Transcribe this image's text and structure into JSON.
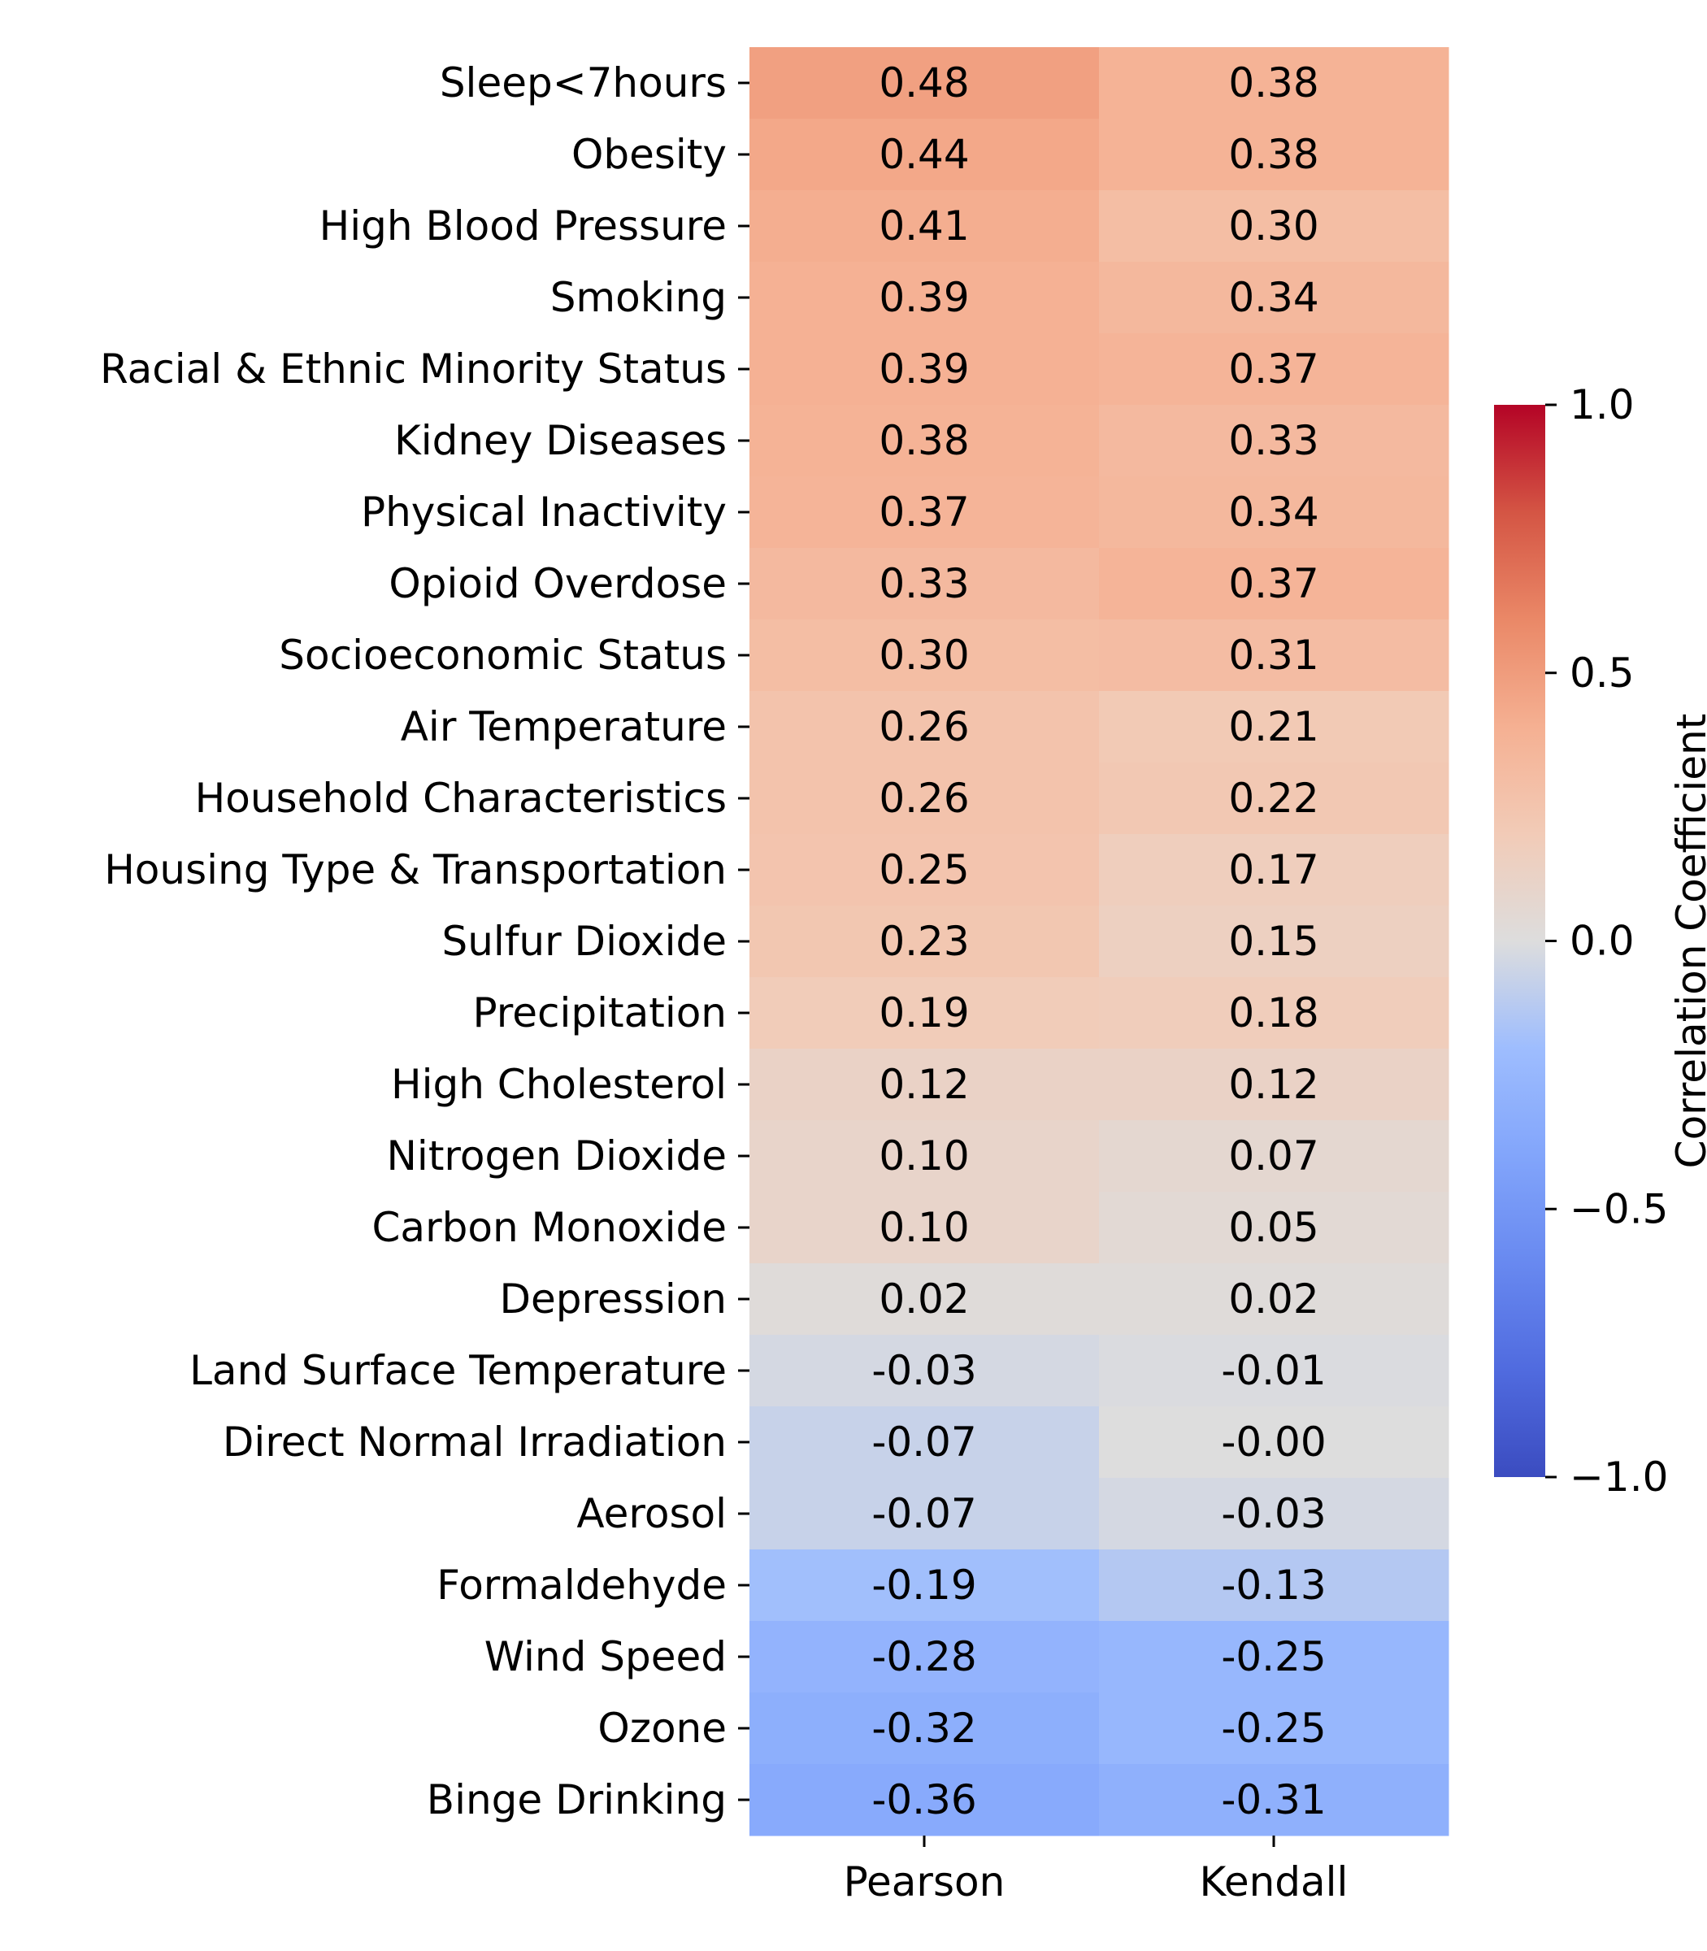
{
  "chart_data": {
    "type": "heatmap",
    "rows": [
      "Sleep<7hours",
      "Obesity",
      "High Blood Pressure",
      "Smoking",
      "Racial & Ethnic Minority Status",
      "Kidney Diseases",
      "Physical Inactivity",
      "Opioid Overdose",
      "Socioeconomic Status",
      "Air Temperature",
      "Household Characteristics",
      "Housing Type & Transportation",
      "Sulfur Dioxide ",
      "Precipitation",
      "High Cholesterol",
      "Nitrogen Dioxide ",
      "Carbon Monoxide ",
      "Depression",
      "Land Surface Temperature",
      "Direct Normal Irradiation",
      "Aerosol ",
      "Formaldehyde ",
      "Wind Speed",
      "Ozone ",
      "Binge Drinking"
    ],
    "columns": [
      "Pearson",
      "Kendall"
    ],
    "values": [
      [
        0.48,
        0.38
      ],
      [
        0.44,
        0.38
      ],
      [
        0.41,
        0.3
      ],
      [
        0.39,
        0.34
      ],
      [
        0.39,
        0.37
      ],
      [
        0.38,
        0.33
      ],
      [
        0.37,
        0.34
      ],
      [
        0.33,
        0.37
      ],
      [
        0.3,
        0.31
      ],
      [
        0.26,
        0.21
      ],
      [
        0.26,
        0.22
      ],
      [
        0.25,
        0.17
      ],
      [
        0.23,
        0.15
      ],
      [
        0.19,
        0.18
      ],
      [
        0.12,
        0.12
      ],
      [
        0.1,
        0.07
      ],
      [
        0.1,
        0.05
      ],
      [
        0.02,
        0.02
      ],
      [
        -0.03,
        -0.01
      ],
      [
        -0.07,
        -0.0
      ],
      [
        -0.07,
        -0.03
      ],
      [
        -0.19,
        -0.13
      ],
      [
        -0.28,
        -0.25
      ],
      [
        -0.32,
        -0.25
      ],
      [
        -0.36,
        -0.31
      ]
    ],
    "cell_labels": [
      [
        "0.48",
        "0.38"
      ],
      [
        "0.44",
        "0.38"
      ],
      [
        "0.41",
        "0.30"
      ],
      [
        "0.39",
        "0.34"
      ],
      [
        "0.39",
        "0.37"
      ],
      [
        "0.38",
        "0.33"
      ],
      [
        "0.37",
        "0.34"
      ],
      [
        "0.33",
        "0.37"
      ],
      [
        "0.30",
        "0.31"
      ],
      [
        "0.26",
        "0.21"
      ],
      [
        "0.26",
        "0.22"
      ],
      [
        "0.25",
        "0.17"
      ],
      [
        "0.23",
        "0.15"
      ],
      [
        "0.19",
        "0.18"
      ],
      [
        "0.12",
        "0.12"
      ],
      [
        "0.10",
        "0.07"
      ],
      [
        "0.10",
        "0.05"
      ],
      [
        "0.02",
        "0.02"
      ],
      [
        "-0.03",
        "-0.01"
      ],
      [
        "-0.07",
        "-0.00"
      ],
      [
        "-0.07",
        "-0.03"
      ],
      [
        "-0.19",
        "-0.13"
      ],
      [
        "-0.28",
        "-0.25"
      ],
      [
        "-0.32",
        "-0.25"
      ],
      [
        "-0.36",
        "-0.31"
      ]
    ],
    "colormap": "coolwarm",
    "colorbar": {
      "label": "Correlation Coefficient",
      "range": [
        -1.0,
        1.0
      ],
      "ticks": [
        1.0,
        0.5,
        0.0,
        -0.5,
        -1.0
      ],
      "tick_labels": [
        "1.0",
        "0.5",
        "0.0",
        "−0.5",
        "−1.0"
      ],
      "placement": "right"
    },
    "colors": {
      "low": "#3b4cc0",
      "mid": "#dddddd",
      "high": "#b40426"
    }
  }
}
